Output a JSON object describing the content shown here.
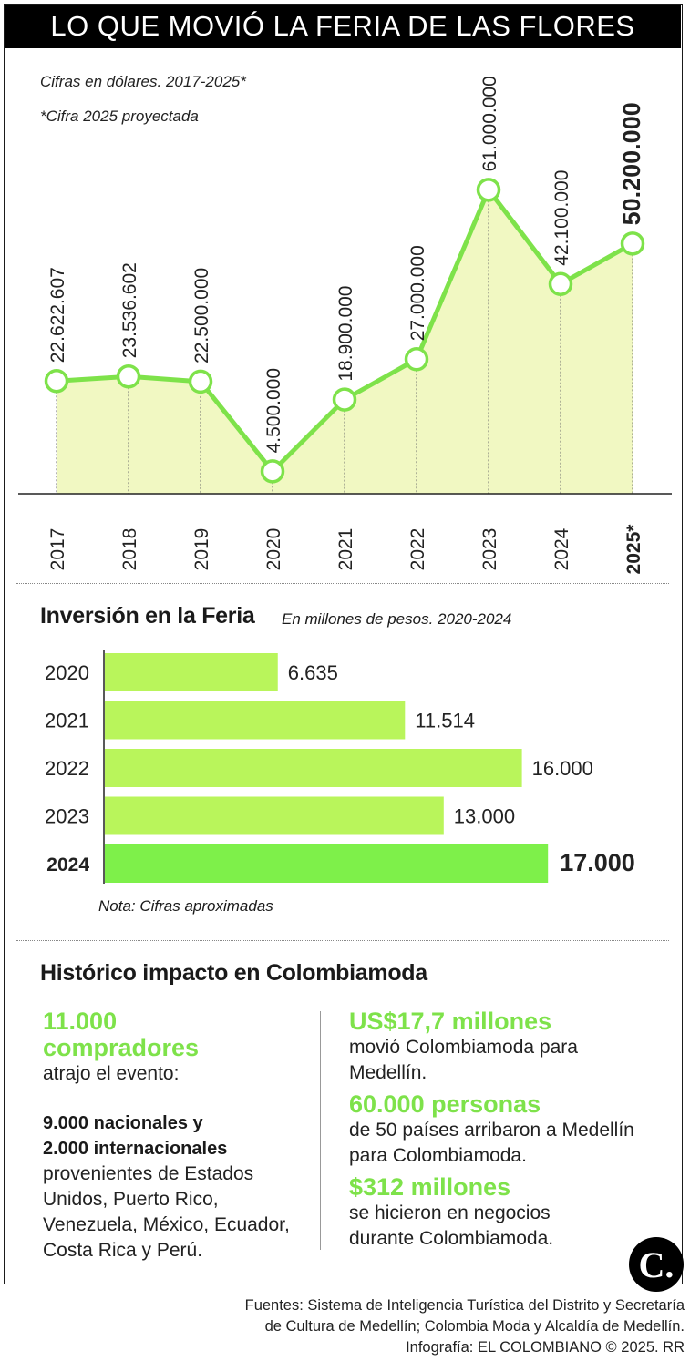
{
  "title": "LO QUE MOVIÓ LA FERIA DE LAS FLORES",
  "subtitle1": "Cifras en dólares. 2017-2025*",
  "subtitle2": "*Cifra 2025 proyectada",
  "chart_data": [
    {
      "type": "area",
      "title": "LO QUE MOVIÓ LA FERIA DE LAS FLORES",
      "subtitle": "Cifras en dólares. 2017-2025*",
      "x": [
        "2017",
        "2018",
        "2019",
        "2020",
        "2021",
        "2022",
        "2023",
        "2024",
        "2025*"
      ],
      "values": [
        22622607,
        23536602,
        22500000,
        4500000,
        18900000,
        27000000,
        61000000,
        42100000,
        50200000
      ],
      "labels": [
        "22.622.607",
        "23.536.602",
        "22.500.000",
        "4.500.000",
        "18.900.000",
        "27.000.000",
        "61.000.000",
        "42.100.000",
        "50.200.000"
      ],
      "highlight_index": 8,
      "colors": {
        "line": "#7ee24a",
        "fill": "#f1f8c2"
      }
    },
    {
      "type": "bar",
      "title": "Inversión en la Feria",
      "subtitle": "En millones de pesos. 2020-2024",
      "categories": [
        "2020",
        "2021",
        "2022",
        "2023",
        "2024"
      ],
      "values": [
        6635,
        11514,
        16000,
        13000,
        17000
      ],
      "labels": [
        "6.635",
        "11.514",
        "16.000",
        "13.000",
        "17.000"
      ],
      "highlight_index": 4,
      "colors": {
        "bar": "#b9f55b",
        "highlight": "#7ef04a"
      },
      "note": "Nota: Cifras aproximadas"
    }
  ],
  "impact": {
    "title": "Histórico impacto en Colombiamoda",
    "left": {
      "big1": "11.000",
      "big2": "compradores",
      "line1": "atrajo el evento:",
      "bold1": "9.000 nacionales y",
      "bold2": "2.000 internacionales",
      "rest": [
        "provenientes de Estados",
        "Unidos, Puerto Rico,",
        "Venezuela, México, Ecuador,",
        "Costa Rica y Perú."
      ]
    },
    "right": [
      {
        "big": "US$17,7 millones",
        "lines": [
          "movió Colombiamoda para",
          "Medellín."
        ]
      },
      {
        "big": "60.000 personas",
        "lines": [
          "de 50 países arribaron a Medellín",
          "para Colombiamoda."
        ]
      },
      {
        "big": "$312 millones",
        "lines": [
          "se hicieron en negocios",
          "durante Colombiamoda."
        ]
      }
    ]
  },
  "logo": "C.",
  "sources": [
    "Fuentes: Sistema de Inteligencia Turística del Distrito y Secretaría",
    "de Cultura de Medellín; Colombia Moda y Alcaldía de Medellín.",
    "Infografía: EL COLOMBIANO © 2025. RR"
  ]
}
